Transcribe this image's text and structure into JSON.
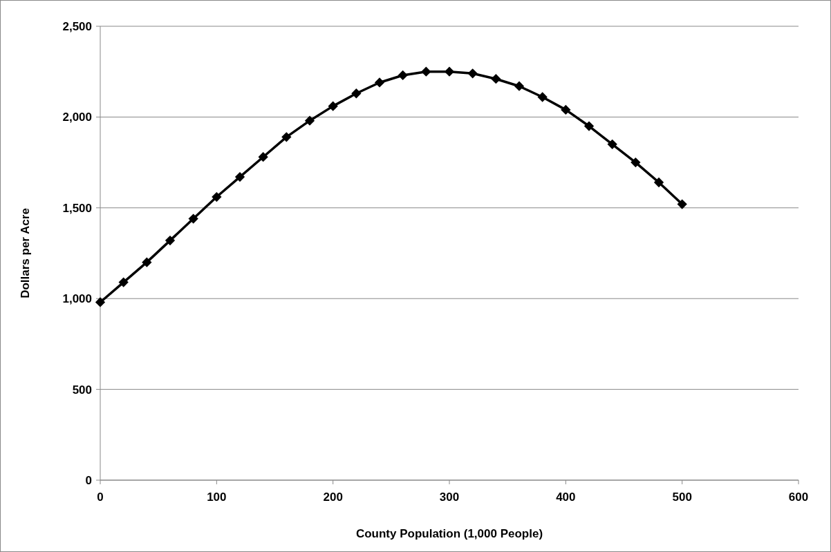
{
  "chart_data": {
    "type": "line",
    "xlabel": "County Population (1,000 People)",
    "ylabel": "Dollars per Acre",
    "x": [
      0,
      20,
      40,
      60,
      80,
      100,
      120,
      140,
      160,
      180,
      200,
      220,
      240,
      260,
      280,
      300,
      320,
      340,
      360,
      380,
      400,
      420,
      440,
      460,
      480,
      500
    ],
    "series": [
      {
        "color": "#000000",
        "values": [
          980,
          1090,
          1200,
          1320,
          1440,
          1560,
          1670,
          1780,
          1890,
          1980,
          2060,
          2130,
          2190,
          2230,
          2250,
          2250,
          2240,
          2210,
          2170,
          2110,
          2040,
          1950,
          1850,
          1750,
          1640,
          1520
        ]
      }
    ],
    "xlim": [
      0,
      600
    ],
    "xticks": [
      0,
      100,
      200,
      300,
      400,
      500,
      600
    ],
    "ylim": [
      0,
      2500
    ],
    "yticks": [
      0,
      {
        "value": 500,
        "label": "500"
      },
      {
        "value": 1000,
        "label": "1,000"
      },
      {
        "value": 1500,
        "label": "1,500"
      },
      {
        "value": 2000,
        "label": "2,000"
      },
      {
        "value": 2500,
        "label": "2,500"
      }
    ],
    "grid": "y",
    "marker": "diamond",
    "line_style": "solid"
  }
}
